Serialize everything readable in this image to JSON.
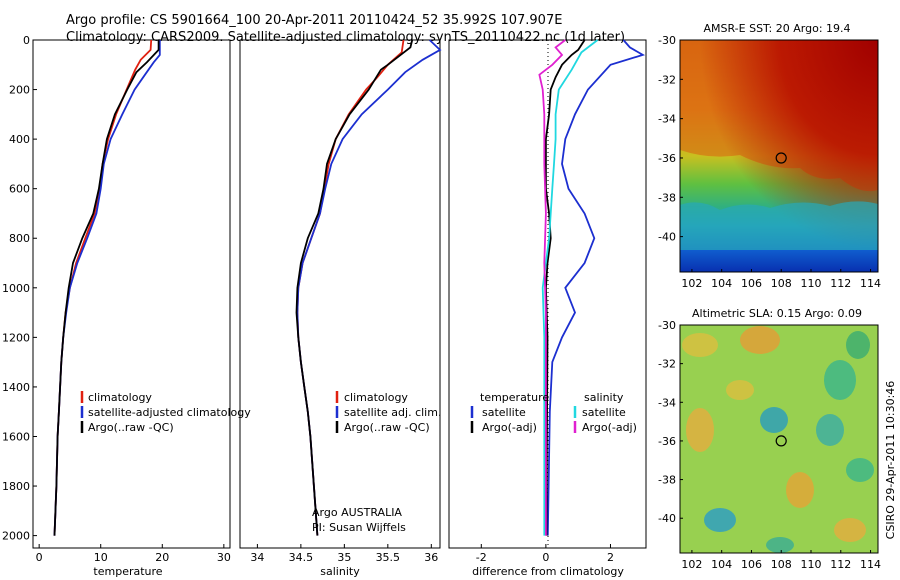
{
  "header": {
    "line1": "Argo profile: CS 5901664_100 20-Apr-2011 20110424_52 35.992S 107.907E",
    "line2": "Climatology: CARS2009. Satellite-adjusted climatology: synTS_20110422.nc (1d later)"
  },
  "footer_note": "CSIRO 29-Apr-2011 10:30:46",
  "colors": {
    "clim": "#e02010",
    "sat": "#1c2fd0",
    "argo": "#000000",
    "sat_sal": "#20d8e0",
    "argo_sal": "#e020d0"
  },
  "chart_data": [
    {
      "type": "line",
      "xlabel": "temperature",
      "xlim": [
        -1,
        31
      ],
      "xticks": [
        "0",
        "10",
        "20",
        "30"
      ],
      "ylim": [
        2050,
        0
      ],
      "yticks": [
        "0",
        "200",
        "400",
        "600",
        "800",
        "1000",
        "1200",
        "1400",
        "1600",
        "1800",
        "2000"
      ],
      "legend": [
        "climatology",
        "satellite-adjusted climatology",
        "Argo(..raw -QC)"
      ],
      "series": [
        {
          "name": "climatology",
          "color": "clim",
          "points": [
            [
              18.2,
              0
            ],
            [
              18.1,
              40
            ],
            [
              16.5,
              80
            ],
            [
              15.6,
              120
            ],
            [
              14.2,
              200
            ],
            [
              12.5,
              300
            ],
            [
              11.2,
              400
            ],
            [
              10.3,
              500
            ],
            [
              9.8,
              600
            ],
            [
              9.0,
              700
            ],
            [
              7.5,
              800
            ],
            [
              6.0,
              900
            ],
            [
              5.0,
              1000
            ],
            [
              4.3,
              1100
            ],
            [
              3.9,
              1200
            ],
            [
              3.6,
              1300
            ],
            [
              3.4,
              1400
            ],
            [
              3.2,
              1500
            ],
            [
              3.0,
              1600
            ],
            [
              2.8,
              1800
            ],
            [
              2.5,
              2000
            ]
          ]
        },
        {
          "name": "satellite-adjusted climatology",
          "color": "sat",
          "points": [
            [
              19.6,
              0
            ],
            [
              19.6,
              60
            ],
            [
              18.6,
              90
            ],
            [
              17.2,
              140
            ],
            [
              15.5,
              200
            ],
            [
              13.5,
              300
            ],
            [
              11.6,
              400
            ],
            [
              10.5,
              500
            ],
            [
              10.0,
              600
            ],
            [
              9.3,
              700
            ],
            [
              7.8,
              800
            ],
            [
              6.2,
              900
            ],
            [
              5.0,
              1000
            ],
            [
              4.4,
              1100
            ],
            [
              3.9,
              1200
            ],
            [
              3.6,
              1300
            ],
            [
              3.4,
              1400
            ],
            [
              3.2,
              1500
            ],
            [
              3.0,
              1600
            ],
            [
              2.8,
              1800
            ],
            [
              2.5,
              2000
            ]
          ]
        },
        {
          "name": "Argo(..raw -QC)",
          "color": "argo",
          "points": [
            [
              19.4,
              0
            ],
            [
              19.4,
              40
            ],
            [
              17.5,
              90
            ],
            [
              15.8,
              130
            ],
            [
              14.3,
              200
            ],
            [
              12.3,
              300
            ],
            [
              11.0,
              400
            ],
            [
              10.3,
              500
            ],
            [
              9.7,
              600
            ],
            [
              8.8,
              700
            ],
            [
              7.0,
              800
            ],
            [
              5.5,
              900
            ],
            [
              4.8,
              1000
            ],
            [
              4.3,
              1100
            ],
            [
              3.9,
              1200
            ],
            [
              3.6,
              1300
            ],
            [
              3.4,
              1400
            ],
            [
              3.2,
              1500
            ],
            [
              3.0,
              1600
            ],
            [
              2.8,
              1800
            ],
            [
              2.5,
              2000
            ]
          ]
        }
      ]
    },
    {
      "type": "line",
      "xlabel": "salinity",
      "xlim": [
        33.8,
        36.1
      ],
      "xticks": [
        "34",
        "34.5",
        "35",
        "35.5",
        "36"
      ],
      "ylim": [
        2050,
        0
      ],
      "legend": [
        "climatology",
        "satellite adj. clim.",
        "Argo(..raw -QC)"
      ],
      "annotation": [
        "Argo AUSTRALIA",
        "PI: Susan Wijffels"
      ],
      "series": [
        {
          "name": "climatology",
          "color": "clim",
          "points": [
            [
              35.68,
              0
            ],
            [
              35.66,
              50
            ],
            [
              35.5,
              100
            ],
            [
              35.38,
              150
            ],
            [
              35.25,
              200
            ],
            [
              35.05,
              300
            ],
            [
              34.9,
              400
            ],
            [
              34.82,
              500
            ],
            [
              34.77,
              600
            ],
            [
              34.72,
              700
            ],
            [
              34.62,
              800
            ],
            [
              34.52,
              900
            ],
            [
              34.47,
              1000
            ],
            [
              34.46,
              1100
            ],
            [
              34.47,
              1200
            ],
            [
              34.5,
              1300
            ],
            [
              34.54,
              1400
            ],
            [
              34.58,
              1500
            ],
            [
              34.61,
              1600
            ],
            [
              34.65,
              1800
            ],
            [
              34.69,
              2000
            ]
          ]
        },
        {
          "name": "satellite adj. clim.",
          "color": "sat",
          "points": [
            [
              35.98,
              0
            ],
            [
              36.1,
              40
            ],
            [
              35.9,
              80
            ],
            [
              35.7,
              130
            ],
            [
              35.5,
              200
            ],
            [
              35.2,
              300
            ],
            [
              34.98,
              400
            ],
            [
              34.85,
              500
            ],
            [
              34.78,
              600
            ],
            [
              34.72,
              700
            ],
            [
              34.62,
              800
            ],
            [
              34.52,
              900
            ],
            [
              34.47,
              1000
            ],
            [
              34.46,
              1100
            ],
            [
              34.47,
              1200
            ],
            [
              34.5,
              1300
            ],
            [
              34.54,
              1400
            ],
            [
              34.58,
              1500
            ],
            [
              34.61,
              1600
            ],
            [
              34.65,
              1800
            ],
            [
              34.69,
              2000
            ]
          ]
        },
        {
          "name": "Argo(..raw -QC)",
          "color": "argo",
          "points": [
            [
              35.78,
              0
            ],
            [
              35.76,
              30
            ],
            [
              35.5,
              100
            ],
            [
              35.42,
              120
            ],
            [
              35.28,
              200
            ],
            [
              35.06,
              300
            ],
            [
              34.9,
              400
            ],
            [
              34.8,
              500
            ],
            [
              34.76,
              600
            ],
            [
              34.7,
              700
            ],
            [
              34.58,
              800
            ],
            [
              34.5,
              900
            ],
            [
              34.46,
              1000
            ],
            [
              34.45,
              1100
            ],
            [
              34.47,
              1200
            ],
            [
              34.5,
              1300
            ],
            [
              34.54,
              1400
            ],
            [
              34.58,
              1500
            ],
            [
              34.61,
              1600
            ],
            [
              34.65,
              1800
            ],
            [
              34.69,
              2000
            ]
          ]
        }
      ]
    },
    {
      "type": "line",
      "xlabel": "difference from climatology",
      "xlim": [
        -3,
        3.1
      ],
      "xticks": [
        "-2",
        "0",
        "2"
      ],
      "ylim": [
        2050,
        0
      ],
      "legend_left_title": "temperature",
      "legend_right_title": "salinity",
      "legend": [
        "satellite",
        "Argo(-adj)",
        "satellite",
        "Argo(-adj)"
      ],
      "series": [
        {
          "name": "satellite",
          "color": "sat",
          "points": [
            [
              2.4,
              0
            ],
            [
              2.6,
              30
            ],
            [
              3.0,
              60
            ],
            [
              2.0,
              100
            ],
            [
              1.3,
              200
            ],
            [
              0.9,
              300
            ],
            [
              0.6,
              400
            ],
            [
              0.5,
              500
            ],
            [
              0.7,
              600
            ],
            [
              1.2,
              700
            ],
            [
              1.5,
              800
            ],
            [
              1.2,
              900
            ],
            [
              0.6,
              1000
            ],
            [
              0.9,
              1100
            ],
            [
              0.5,
              1200
            ],
            [
              0.2,
              1300
            ],
            [
              0.12,
              1500
            ],
            [
              0.06,
              2000
            ]
          ]
        },
        {
          "name": "Argo(-adj)",
          "color": "argo",
          "points": [
            [
              1.2,
              0
            ],
            [
              1.0,
              40
            ],
            [
              0.8,
              60
            ],
            [
              0.5,
              100
            ],
            [
              0.3,
              150
            ],
            [
              0.15,
              200
            ],
            [
              0.1,
              300
            ],
            [
              0.0,
              400
            ],
            [
              0.0,
              600
            ],
            [
              0.1,
              700
            ],
            [
              0.15,
              800
            ],
            [
              0.05,
              900
            ],
            [
              0.0,
              1000
            ],
            [
              0.05,
              1200
            ],
            [
              0.03,
              1600
            ],
            [
              0.02,
              2000
            ]
          ]
        },
        {
          "name": "satellite",
          "color": "sat_sal",
          "points": [
            [
              1.6,
              0
            ],
            [
              1.1,
              50
            ],
            [
              0.8,
              120
            ],
            [
              0.4,
              200
            ],
            [
              0.3,
              300
            ],
            [
              0.3,
              400
            ],
            [
              0.25,
              500
            ],
            [
              0.2,
              600
            ],
            [
              0.15,
              700
            ],
            [
              0.1,
              800
            ],
            [
              0.0,
              900
            ],
            [
              -0.1,
              1000
            ],
            [
              -0.05,
              1200
            ],
            [
              -0.05,
              1500
            ],
            [
              -0.05,
              2000
            ]
          ]
        },
        {
          "name": "Argo(-adj)",
          "color": "argo_sal",
          "points": [
            [
              0.6,
              0
            ],
            [
              0.3,
              30
            ],
            [
              0.5,
              60
            ],
            [
              0.2,
              100
            ],
            [
              -0.2,
              140
            ],
            [
              -0.1,
              200
            ],
            [
              -0.05,
              300
            ],
            [
              -0.05,
              500
            ],
            [
              0.0,
              700
            ],
            [
              -0.05,
              900
            ],
            [
              0.0,
              1100
            ],
            [
              0.0,
              1500
            ],
            [
              0.0,
              2000
            ]
          ]
        }
      ]
    },
    {
      "type": "heatmap",
      "title": "AMSR-E SST: 20 Argo: 19.4",
      "xticks": [
        "102",
        "104",
        "106",
        "108",
        "110",
        "112",
        "114"
      ],
      "yticks": [
        "-30",
        "-32",
        "-34",
        "-36",
        "-38",
        "-40"
      ],
      "marker": [
        108,
        -36
      ]
    },
    {
      "type": "heatmap",
      "title": "Altimetric SLA: 0.15 Argo: 0.09",
      "xticks": [
        "102",
        "104",
        "106",
        "108",
        "110",
        "112",
        "114"
      ],
      "yticks": [
        "-30",
        "-32",
        "-34",
        "-36",
        "-38",
        "-40"
      ],
      "marker": [
        108,
        -36
      ]
    }
  ]
}
